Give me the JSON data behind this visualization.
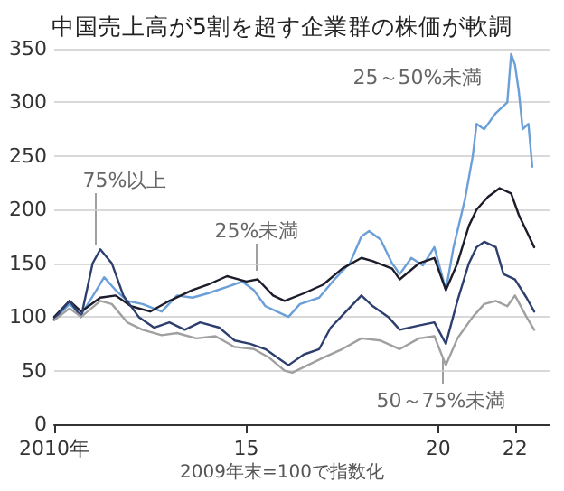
{
  "chart_data": {
    "type": "line",
    "title": "中国売上高が5割を超す企業群の株価が軟調",
    "annotations": [
      "2009年末=100で指数化"
    ],
    "xlim": [
      2010,
      2022.9
    ],
    "xticks": [
      {
        "value": 2010,
        "label": "2010年"
      },
      {
        "value": 2015,
        "label": "15"
      },
      {
        "value": 2020,
        "label": "20"
      },
      {
        "value": 2022,
        "label": "22"
      }
    ],
    "ylim": [
      0,
      350
    ],
    "yticks": [
      0,
      50,
      100,
      150,
      200,
      250,
      300,
      350
    ],
    "grid": "y",
    "legend": false,
    "marker": "none",
    "line_style": "solid",
    "series": [
      {
        "name": "25～50%未満",
        "color": "#6a9fd8",
        "x": [
          2010,
          2010.4,
          2010.7,
          2011.1,
          2011.3,
          2011.6,
          2011.9,
          2012.3,
          2012.8,
          2013.2,
          2013.6,
          2014,
          2014.5,
          2014.9,
          2015.2,
          2015.5,
          2015.8,
          2016.1,
          2016.4,
          2016.9,
          2017.3,
          2017.7,
          2018,
          2018.2,
          2018.5,
          2018.8,
          2019,
          2019.3,
          2019.6,
          2019.9,
          2020.2,
          2020.4,
          2020.7,
          2020.9,
          2021,
          2021.2,
          2021.5,
          2021.8,
          2021.9,
          2022,
          2022.1,
          2022.2,
          2022.35,
          2022.45
        ],
        "values": [
          98,
          112,
          102,
          125,
          137,
          125,
          115,
          112,
          105,
          120,
          118,
          122,
          128,
          133,
          125,
          110,
          105,
          100,
          112,
          118,
          135,
          150,
          175,
          180,
          172,
          150,
          140,
          155,
          148,
          165,
          125,
          165,
          210,
          250,
          280,
          275,
          290,
          300,
          345,
          335,
          310,
          275,
          280,
          240
        ]
      },
      {
        "name": "25%未満",
        "color": "#1c1c2a",
        "x": [
          2010,
          2010.4,
          2010.7,
          2011.2,
          2011.6,
          2012,
          2012.5,
          2013,
          2013.6,
          2014,
          2014.5,
          2015,
          2015.3,
          2015.7,
          2016,
          2016.5,
          2017,
          2017.5,
          2018,
          2018.3,
          2018.8,
          2019,
          2019.5,
          2019.9,
          2020.2,
          2020.5,
          2020.8,
          2021,
          2021.3,
          2021.6,
          2021.9,
          2022.1,
          2022.3,
          2022.5
        ],
        "values": [
          100,
          115,
          105,
          118,
          120,
          110,
          105,
          115,
          125,
          130,
          138,
          133,
          135,
          120,
          115,
          122,
          130,
          145,
          155,
          152,
          145,
          135,
          150,
          155,
          125,
          150,
          185,
          200,
          212,
          220,
          215,
          195,
          180,
          165
        ]
      },
      {
        "name": "75%以上",
        "color": "#2e3f6e",
        "x": [
          2010,
          2010.4,
          2010.7,
          2011,
          2011.2,
          2011.5,
          2011.8,
          2012.2,
          2012.6,
          2013,
          2013.4,
          2013.8,
          2014.3,
          2014.7,
          2015.1,
          2015.5,
          2015.9,
          2016.1,
          2016.5,
          2016.9,
          2017.2,
          2017.6,
          2018,
          2018.3,
          2018.7,
          2019,
          2019.5,
          2019.9,
          2020.2,
          2020.5,
          2020.8,
          2021,
          2021.2,
          2021.5,
          2021.7,
          2022,
          2022.3,
          2022.5
        ],
        "values": [
          98,
          115,
          100,
          150,
          163,
          150,
          120,
          100,
          90,
          95,
          88,
          95,
          90,
          78,
          75,
          70,
          60,
          55,
          65,
          70,
          90,
          105,
          120,
          110,
          100,
          88,
          92,
          95,
          75,
          115,
          150,
          165,
          170,
          165,
          140,
          135,
          118,
          105
        ]
      },
      {
        "name": "50～75%未満",
        "color": "#a0a0a0",
        "x": [
          2010,
          2010.4,
          2010.7,
          2011.2,
          2011.5,
          2011.9,
          2012.3,
          2012.8,
          2013.2,
          2013.7,
          2014.2,
          2014.7,
          2015.2,
          2015.6,
          2016,
          2016.2,
          2016.6,
          2017,
          2017.5,
          2018,
          2018.5,
          2019,
          2019.5,
          2019.9,
          2020.2,
          2020.5,
          2020.9,
          2021.2,
          2021.5,
          2021.8,
          2022,
          2022.3,
          2022.5
        ],
        "values": [
          97,
          108,
          100,
          115,
          112,
          95,
          88,
          83,
          85,
          80,
          82,
          72,
          70,
          62,
          50,
          48,
          55,
          62,
          70,
          80,
          78,
          70,
          80,
          82,
          55,
          80,
          100,
          112,
          115,
          110,
          120,
          100,
          88
        ]
      }
    ]
  }
}
